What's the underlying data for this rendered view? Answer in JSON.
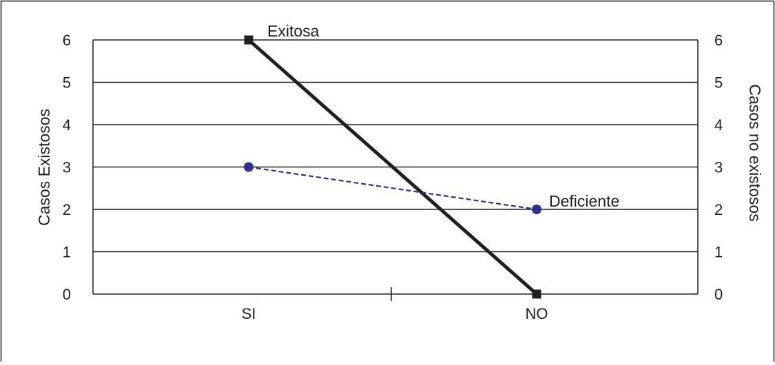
{
  "chart_data": {
    "type": "line",
    "categories": [
      "SI",
      "NO"
    ],
    "series": [
      {
        "name": "Exitosa",
        "values": [
          6,
          0
        ],
        "color": "#231f20",
        "style": "solid",
        "marker": "square",
        "axis": "left"
      },
      {
        "name": "Deficiente",
        "values": [
          3,
          2
        ],
        "color": "#2e3192",
        "style": "dashed",
        "marker": "circle",
        "axis": "right"
      }
    ],
    "ylabel_left": "Casos Existosos",
    "ylabel_right": "Casos no existosos",
    "ylim": [
      0,
      6
    ],
    "yticks": [
      "0",
      "1",
      "2",
      "3",
      "4",
      "5",
      "6"
    ],
    "grid": true,
    "legend": "inline labels"
  }
}
